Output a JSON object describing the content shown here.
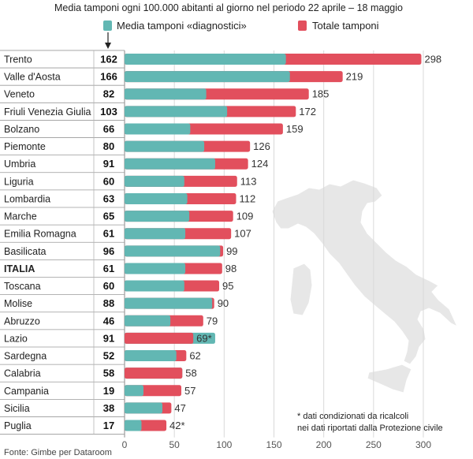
{
  "chart_data": {
    "type": "bar",
    "orientation": "horizontal",
    "title": "Media tamponi ogni 100.000 abitanti al giorno nel periodo 22 aprile – 18 maggio",
    "categories": [
      "Trento",
      "Valle d'Aosta",
      "Veneto",
      "Friuli Venezia Giulia",
      "Bolzano",
      "Piemonte",
      "Umbria",
      "Liguria",
      "Lombardia",
      "Marche",
      "Emilia Romagna",
      "Basilicata",
      "ITALIA",
      "Toscana",
      "Molise",
      "Abruzzo",
      "Lazio",
      "Sardegna",
      "Calabria",
      "Campania",
      "Sicilia",
      "Puglia"
    ],
    "series": [
      {
        "name": "Media tamponi «diagnostici»",
        "color": "#62b7b3",
        "values": [
          162,
          166,
          82,
          103,
          66,
          80,
          91,
          60,
          63,
          65,
          61,
          96,
          61,
          60,
          88,
          46,
          91,
          52,
          58,
          19,
          38,
          17
        ]
      },
      {
        "name": "Totale tamponi",
        "color": "#e24f5d",
        "values": [
          298,
          219,
          185,
          172,
          159,
          126,
          124,
          113,
          112,
          109,
          107,
          99,
          98,
          95,
          90,
          79,
          69,
          62,
          58,
          57,
          47,
          42
        ]
      }
    ],
    "total_labels": [
      "298",
      "219",
      "185",
      "172",
      "159",
      "126",
      "124",
      "113",
      "112",
      "109",
      "107",
      "99",
      "98",
      "95",
      "90",
      "79",
      "69*",
      "62",
      "58",
      "57",
      "47",
      "42*"
    ],
    "highlight_category": "ITALIA",
    "xlim": [
      0,
      300
    ],
    "xticks": [
      0,
      50,
      100,
      150,
      200,
      250,
      300
    ],
    "grid": true,
    "legend_position": "top"
  },
  "footnote": {
    "line1": "* dati condizionati da ricalcoli",
    "line2": "nei dati riportati dalla Protezione civile"
  },
  "source": "Fonte: Gimbe per Dataroom",
  "background_map_icon": "italy-map"
}
